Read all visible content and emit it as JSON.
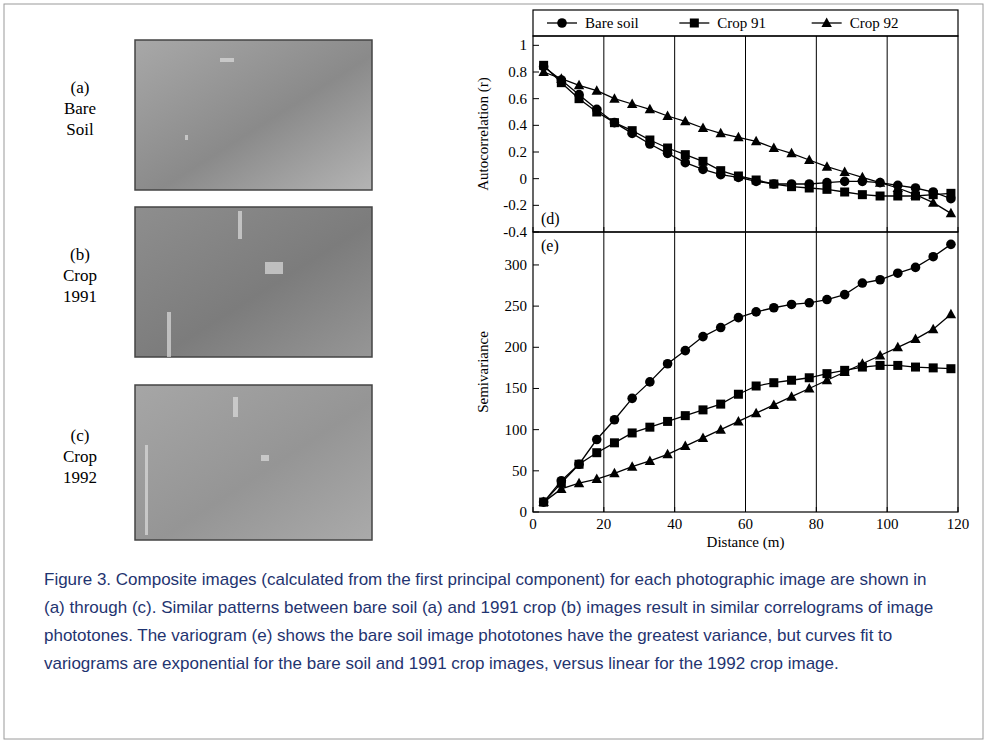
{
  "panels": [
    {
      "letter": "(a)",
      "label": "Bare Soil"
    },
    {
      "letter": "(b)",
      "label": "Crop 1991"
    },
    {
      "letter": "(c)",
      "label": "Crop 1992"
    }
  ],
  "chart_data": [
    {
      "type": "line",
      "panel": "(d)",
      "y_label": "Autocorrelation (r)",
      "x": [
        3,
        8,
        13,
        18,
        23,
        28,
        33,
        38,
        43,
        48,
        53,
        58,
        63,
        68,
        73,
        78,
        83,
        88,
        93,
        98,
        103,
        108,
        113,
        118
      ],
      "series": [
        {
          "name": "Bare soil",
          "color": "#000000",
          "marker": "circle",
          "values": [
            0.84,
            0.74,
            0.63,
            0.52,
            0.42,
            0.34,
            0.26,
            0.19,
            0.12,
            0.07,
            0.03,
            0.01,
            -0.02,
            -0.04,
            -0.04,
            -0.04,
            -0.03,
            -0.02,
            -0.02,
            -0.03,
            -0.05,
            -0.07,
            -0.1,
            -0.15
          ]
        },
        {
          "name": "Crop 91",
          "color": "#000000",
          "marker": "square",
          "values": [
            0.85,
            0.72,
            0.6,
            0.5,
            0.42,
            0.36,
            0.29,
            0.23,
            0.18,
            0.13,
            0.06,
            0.02,
            -0.01,
            -0.04,
            -0.06,
            -0.07,
            -0.08,
            -0.1,
            -0.12,
            -0.13,
            -0.13,
            -0.13,
            -0.12,
            -0.11
          ]
        },
        {
          "name": "Crop 92",
          "color": "#000000",
          "marker": "triangle",
          "values": [
            0.8,
            0.75,
            0.7,
            0.66,
            0.6,
            0.56,
            0.52,
            0.47,
            0.43,
            0.38,
            0.34,
            0.31,
            0.28,
            0.23,
            0.19,
            0.14,
            0.09,
            0.05,
            0.01,
            -0.03,
            -0.07,
            -0.12,
            -0.18,
            -0.26
          ]
        }
      ],
      "xlim": [
        0,
        120
      ],
      "xticks": [
        0,
        20,
        40,
        60,
        80,
        100,
        120
      ],
      "ylim": [
        -0.4,
        1.07
      ],
      "yticks": [
        -0.4,
        -0.2,
        0,
        0.2,
        0.4,
        0.6,
        0.8,
        1
      ],
      "grid": true,
      "legend": "top",
      "tick_labels": "y"
    },
    {
      "type": "line",
      "panel": "(e)",
      "y_label": "Semivariance",
      "x_label": "Distance (m)",
      "x": [
        3,
        8,
        13,
        18,
        23,
        28,
        33,
        38,
        43,
        48,
        53,
        58,
        63,
        68,
        73,
        78,
        83,
        88,
        93,
        98,
        103,
        108,
        113,
        118
      ],
      "series": [
        {
          "name": "Bare soil",
          "color": "#000000",
          "marker": "circle",
          "values": [
            12,
            38,
            58,
            88,
            112,
            138,
            158,
            180,
            196,
            213,
            224,
            236,
            243,
            248,
            252,
            254,
            258,
            264,
            278,
            282,
            290,
            297,
            310,
            325
          ]
        },
        {
          "name": "Crop 91",
          "color": "#000000",
          "marker": "square",
          "values": [
            12,
            35,
            58,
            72,
            84,
            96,
            103,
            110,
            117,
            124,
            131,
            143,
            153,
            157,
            160,
            163,
            168,
            172,
            176,
            178,
            178,
            176,
            175,
            174
          ]
        },
        {
          "name": "Crop 92",
          "color": "#000000",
          "marker": "triangle",
          "values": [
            12,
            28,
            35,
            40,
            47,
            55,
            62,
            70,
            80,
            90,
            100,
            110,
            120,
            130,
            140,
            150,
            160,
            170,
            180,
            190,
            200,
            210,
            222,
            240
          ]
        }
      ],
      "xlim": [
        0,
        120
      ],
      "xticks": [
        0,
        20,
        40,
        60,
        80,
        100,
        120
      ],
      "ylim": [
        0,
        340
      ],
      "yticks": [
        0,
        50,
        100,
        150,
        200,
        250,
        300
      ],
      "grid": true
    }
  ],
  "caption": "Figure 3. Composite images (calculated from the first principal component) for each photographic image are shown in (a) through (c). Similar patterns between bare soil (a) and 1991 crop (b) images result in similar correlograms of image phototones. The variogram (e) shows the bare soil image phototones have the greatest variance, but curves fit to variograms are exponential for the bare soil and 1991 crop images, versus linear for the 1992 crop image."
}
